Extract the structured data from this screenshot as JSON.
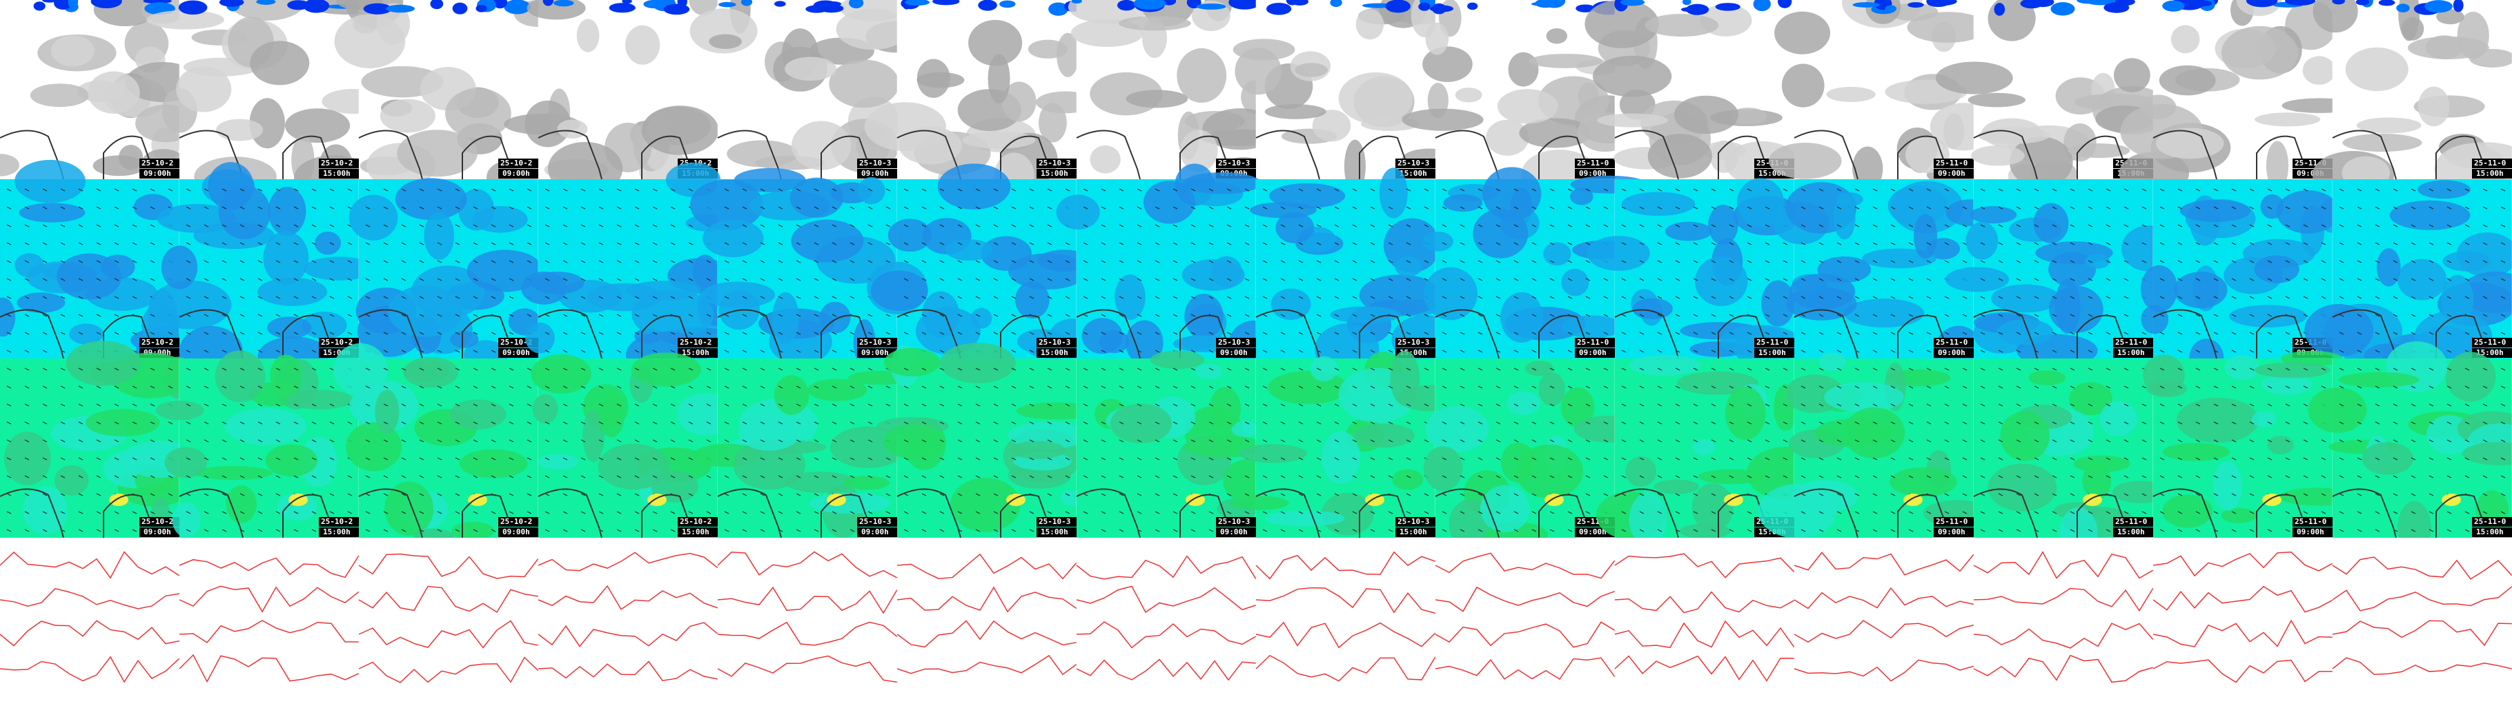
{
  "panels": [
    {
      "date": "25-10-2",
      "time": "09:00h"
    },
    {
      "date": "25-10-2",
      "time": "15:00h"
    },
    {
      "date": "25-10-2",
      "time": "09:00h"
    },
    {
      "date": "25-10-2",
      "time": "15:00h"
    },
    {
      "date": "25-10-3",
      "time": "09:00h"
    },
    {
      "date": "25-10-3",
      "time": "15:00h"
    },
    {
      "date": "25-10-3",
      "time": "09:00h"
    },
    {
      "date": "25-10-3",
      "time": "15:00h"
    },
    {
      "date": "25-11-0",
      "time": "09:00h"
    },
    {
      "date": "25-11-0",
      "time": "15:00h"
    },
    {
      "date": "25-11-0",
      "time": "09:00h"
    },
    {
      "date": "25-11-0",
      "time": "15:00h"
    },
    {
      "date": "25-11-0",
      "time": "09:00h"
    },
    {
      "date": "25-11-0",
      "time": "15:00h"
    }
  ]
}
